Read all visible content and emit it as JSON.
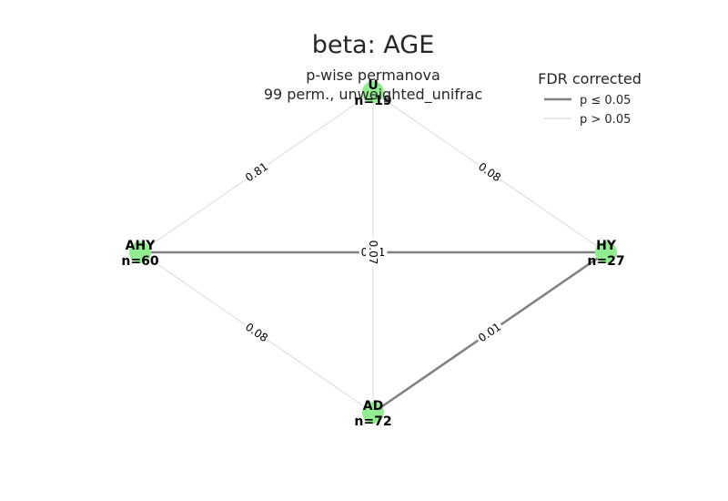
{
  "title": "beta: AGE",
  "subtitle_line1": "p-wise permanova",
  "subtitle_line2": "99 perm., unweighted_unifrac",
  "legend": {
    "title": "FDR corrected",
    "items": [
      {
        "label": "p ≤ 0.05",
        "style": "significant"
      },
      {
        "label": "p > 0.05",
        "style": "nonsignificant"
      }
    ]
  },
  "colors": {
    "node_fill": "#90ee90",
    "significant_edge": "#808080",
    "nonsignificant_edge": "#d3d3d3",
    "text": "#262626"
  },
  "nodes": [
    {
      "id": "U",
      "name": "U",
      "n_label": "n=19"
    },
    {
      "id": "AHY",
      "name": "AHY",
      "n_label": "n=60"
    },
    {
      "id": "HY",
      "name": "HY",
      "n_label": "n=27"
    },
    {
      "id": "AD",
      "name": "AD",
      "n_label": "n=72"
    }
  ],
  "edges": [
    {
      "source": "AHY",
      "target": "HY",
      "p": "0.01",
      "significant": true
    },
    {
      "source": "HY",
      "target": "AD",
      "p": "0.01",
      "significant": true
    },
    {
      "source": "U",
      "target": "AHY",
      "p": "0.81",
      "significant": false
    },
    {
      "source": "U",
      "target": "HY",
      "p": "0.08",
      "significant": false
    },
    {
      "source": "U",
      "target": "AD",
      "p": "0.07",
      "significant": false
    },
    {
      "source": "AHY",
      "target": "AD",
      "p": "0.08",
      "significant": false
    }
  ]
}
